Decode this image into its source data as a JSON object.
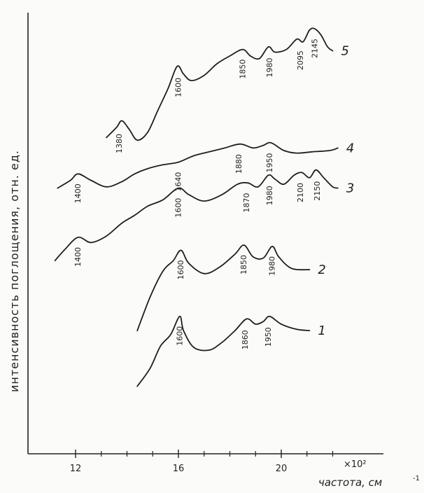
{
  "chart_data": {
    "type": "line",
    "xlabel": "частота, см",
    "xlabel_sup": "-1",
    "x_multiplier": "×10²",
    "ylabel": "интенсивность поглощения, отн. ед.",
    "xlim": [
      9.7,
      22.3
    ],
    "x_ticks": [
      12,
      16,
      20
    ],
    "x_ticks_minor": [
      13,
      14,
      15,
      17,
      18,
      19,
      21,
      22
    ],
    "grid": false,
    "legend": "curve numbers at right end of each curve",
    "series": [
      {
        "name": "1",
        "points": [
          [
            14.4,
            0.55
          ],
          [
            14.9,
            1.25
          ],
          [
            15.3,
            2.1
          ],
          [
            15.7,
            2.55
          ],
          [
            16.05,
            3.25
          ],
          [
            16.2,
            2.7
          ],
          [
            16.6,
            2.05
          ],
          [
            17.2,
            1.95
          ],
          [
            17.7,
            2.25
          ],
          [
            18.2,
            2.7
          ],
          [
            18.65,
            3.15
          ],
          [
            19.0,
            2.95
          ],
          [
            19.3,
            3.05
          ],
          [
            19.55,
            3.25
          ],
          [
            20.0,
            2.95
          ],
          [
            20.6,
            2.75
          ],
          [
            21.1,
            2.7
          ]
        ],
        "peak_labels": [
          {
            "x": 16.05,
            "text": "1600"
          },
          {
            "x": 18.6,
            "text": "1860"
          },
          {
            "x": 19.5,
            "text": "1950"
          }
        ]
      },
      {
        "name": "2",
        "points": [
          [
            14.4,
            2.7
          ],
          [
            14.9,
            4.0
          ],
          [
            15.4,
            5.0
          ],
          [
            15.8,
            5.4
          ],
          [
            16.1,
            5.8
          ],
          [
            16.4,
            5.3
          ],
          [
            17.0,
            4.9
          ],
          [
            17.6,
            5.15
          ],
          [
            18.2,
            5.65
          ],
          [
            18.55,
            6.0
          ],
          [
            18.9,
            5.55
          ],
          [
            19.3,
            5.5
          ],
          [
            19.65,
            5.95
          ],
          [
            19.9,
            5.55
          ],
          [
            20.4,
            5.1
          ],
          [
            21.1,
            5.05
          ]
        ],
        "peak_labels": [
          {
            "x": 16.1,
            "text": "1600"
          },
          {
            "x": 18.55,
            "text": "1850"
          },
          {
            "x": 19.65,
            "text": "1980"
          }
        ]
      },
      {
        "name": "3",
        "points": [
          [
            11.2,
            5.4
          ],
          [
            11.6,
            5.85
          ],
          [
            12.1,
            6.3
          ],
          [
            12.6,
            6.1
          ],
          [
            13.2,
            6.35
          ],
          [
            13.8,
            6.85
          ],
          [
            14.3,
            7.15
          ],
          [
            14.8,
            7.5
          ],
          [
            15.4,
            7.75
          ],
          [
            16.0,
            8.2
          ],
          [
            16.4,
            7.95
          ],
          [
            17.0,
            7.7
          ],
          [
            17.7,
            7.95
          ],
          [
            18.3,
            8.35
          ],
          [
            18.7,
            8.4
          ],
          [
            19.1,
            8.25
          ],
          [
            19.5,
            8.7
          ],
          [
            19.75,
            8.55
          ],
          [
            20.1,
            8.35
          ],
          [
            20.5,
            8.7
          ],
          [
            20.8,
            8.8
          ],
          [
            21.1,
            8.6
          ],
          [
            21.35,
            8.9
          ],
          [
            21.65,
            8.6
          ],
          [
            22.0,
            8.25
          ],
          [
            22.2,
            8.2
          ]
        ],
        "peak_labels": [
          {
            "x": 12.1,
            "text": "1400"
          },
          {
            "x": 16.0,
            "text": "1600"
          },
          {
            "x": 18.65,
            "text": "1870"
          },
          {
            "x": 19.55,
            "text": "1980"
          },
          {
            "x": 20.75,
            "text": "2100"
          },
          {
            "x": 21.4,
            "text": "2150"
          }
        ]
      },
      {
        "name": "4",
        "points": [
          [
            11.3,
            8.2
          ],
          [
            11.8,
            8.5
          ],
          [
            12.1,
            8.75
          ],
          [
            12.6,
            8.5
          ],
          [
            13.2,
            8.25
          ],
          [
            13.8,
            8.45
          ],
          [
            14.3,
            8.75
          ],
          [
            14.8,
            8.95
          ],
          [
            15.4,
            9.1
          ],
          [
            16.0,
            9.2
          ],
          [
            16.6,
            9.45
          ],
          [
            17.2,
            9.6
          ],
          [
            17.8,
            9.75
          ],
          [
            18.4,
            9.9
          ],
          [
            18.9,
            9.75
          ],
          [
            19.3,
            9.85
          ],
          [
            19.6,
            9.95
          ],
          [
            20.1,
            9.65
          ],
          [
            20.6,
            9.55
          ],
          [
            21.2,
            9.6
          ],
          [
            21.9,
            9.65
          ],
          [
            22.2,
            9.75
          ]
        ],
        "peak_labels": [
          {
            "x": 12.1,
            "text": "1400"
          },
          {
            "x": 16.0,
            "text": "1640"
          },
          {
            "x": 18.35,
            "text": "1880"
          },
          {
            "x": 19.55,
            "text": "1950"
          }
        ]
      },
      {
        "name": "5",
        "points": [
          [
            13.2,
            10.15
          ],
          [
            13.6,
            10.55
          ],
          [
            13.8,
            10.8
          ],
          [
            14.1,
            10.45
          ],
          [
            14.4,
            10.05
          ],
          [
            14.8,
            10.35
          ],
          [
            15.2,
            11.2
          ],
          [
            15.6,
            12.05
          ],
          [
            15.95,
            12.9
          ],
          [
            16.2,
            12.6
          ],
          [
            16.5,
            12.35
          ],
          [
            17.0,
            12.55
          ],
          [
            17.5,
            13.0
          ],
          [
            18.0,
            13.3
          ],
          [
            18.5,
            13.55
          ],
          [
            18.8,
            13.3
          ],
          [
            19.15,
            13.2
          ],
          [
            19.5,
            13.65
          ],
          [
            19.75,
            13.45
          ],
          [
            20.2,
            13.55
          ],
          [
            20.6,
            13.95
          ],
          [
            20.85,
            13.85
          ],
          [
            21.1,
            14.3
          ],
          [
            21.3,
            14.35
          ],
          [
            21.55,
            14.1
          ],
          [
            21.8,
            13.65
          ],
          [
            22.0,
            13.5
          ]
        ],
        "peak_labels": [
          {
            "x": 13.7,
            "text": "1380"
          },
          {
            "x": 16.0,
            "text": "1600"
          },
          {
            "x": 18.5,
            "text": "1850"
          },
          {
            "x": 19.55,
            "text": "1980"
          },
          {
            "x": 20.75,
            "text": "2095"
          },
          {
            "x": 21.3,
            "text": "2145"
          }
        ]
      }
    ]
  }
}
